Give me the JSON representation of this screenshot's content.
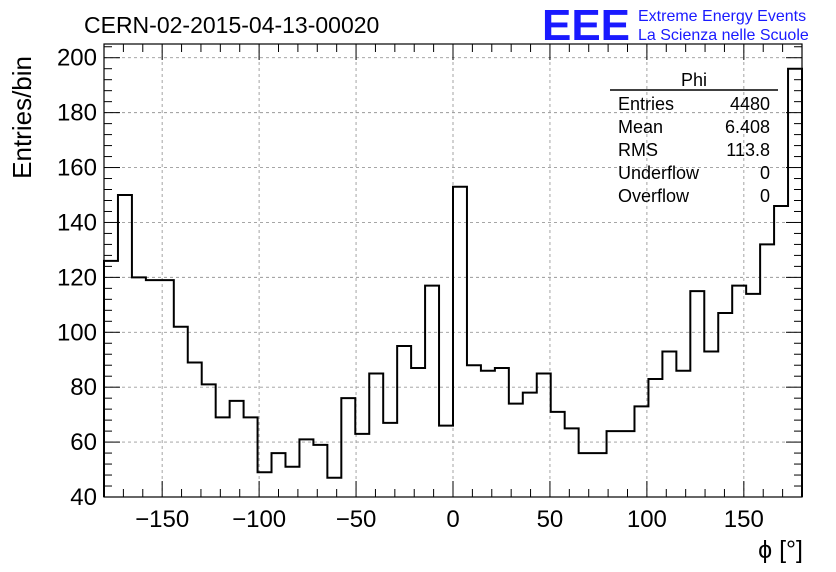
{
  "chart_data": {
    "type": "histogram",
    "title": "CERN-02-2015-04-13-00020",
    "xlabel": "ϕ [°]",
    "ylabel": "Entries/bin",
    "xlim": [
      -180,
      180
    ],
    "ylim": [
      40,
      205
    ],
    "grid": true,
    "bin_width": 7.2,
    "x_ticks": [
      -150,
      -100,
      -50,
      0,
      50,
      100,
      150
    ],
    "y_ticks": [
      40,
      60,
      80,
      100,
      120,
      140,
      160,
      180,
      200
    ],
    "values": [
      126,
      150,
      120,
      119,
      119,
      102,
      89,
      81,
      69,
      75,
      69,
      49,
      56,
      51,
      61,
      59,
      47,
      76,
      63,
      85,
      67,
      95,
      87,
      117,
      66,
      153,
      88,
      86,
      87,
      74,
      78,
      85,
      71,
      65,
      56,
      56,
      64,
      64,
      73,
      83,
      93,
      86,
      115,
      93,
      107,
      117,
      114,
      132,
      146,
      196
    ],
    "stats_box": {
      "title": "Phi",
      "rows": [
        {
          "label": "Entries",
          "value": "4480"
        },
        {
          "label": "Mean",
          "value": "6.408"
        },
        {
          "label": "RMS",
          "value": "113.8"
        },
        {
          "label": "Underflow",
          "value": "0"
        },
        {
          "label": "Overflow",
          "value": "0"
        }
      ]
    }
  },
  "logo": {
    "acronym": "EEE",
    "line1": "Extreme Energy Events",
    "line2": "La Scienza nelle Scuole"
  },
  "colors": {
    "logo": "#1a1aff",
    "line": "#000000",
    "grid": "#9a9a9a"
  }
}
